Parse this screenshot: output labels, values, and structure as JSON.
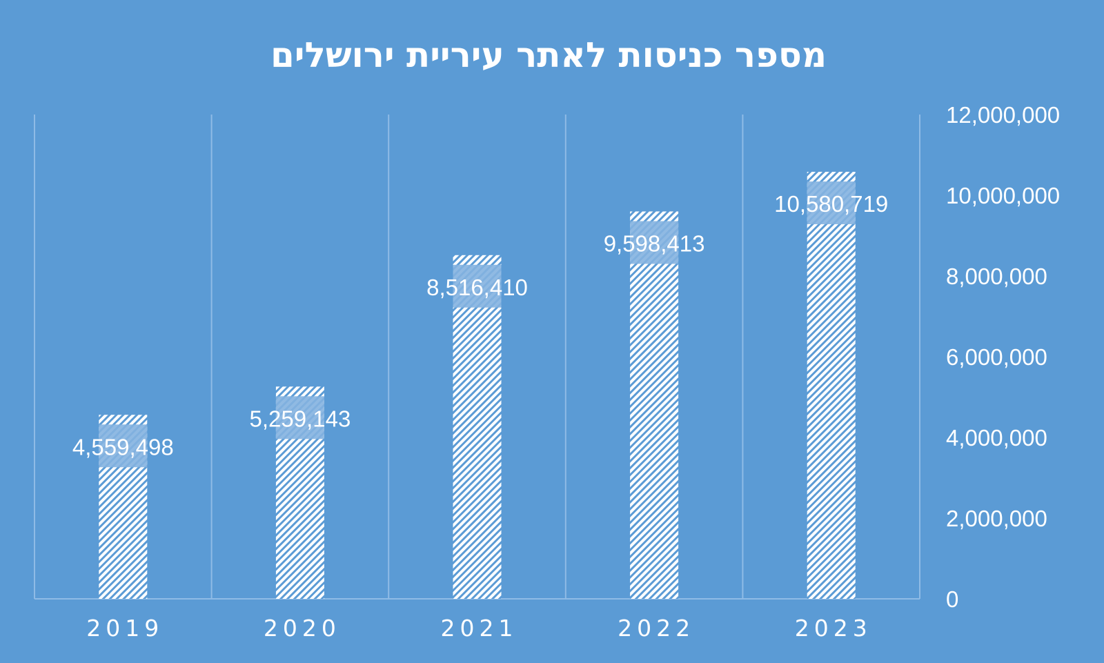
{
  "colors": {
    "background": "#5b9bd5",
    "bar_hatch": "#ffffff",
    "label_band": "#84b3e0",
    "grid": "#8fbbe6",
    "text": "#ffffff"
  },
  "chart_data": {
    "type": "bar",
    "title": "מספר כניסות לאתר עיריית ירושלים",
    "categories": [
      "2019",
      "2020",
      "2021",
      "2022",
      "2023"
    ],
    "values": [
      4559498,
      5259143,
      8516410,
      9598413,
      10580719
    ],
    "data_labels": [
      "4,559,498",
      "5,259,143",
      "8,516,410",
      "9,598,413",
      "10,580,719"
    ],
    "ylim": [
      0,
      12000000
    ],
    "yticks": [
      0,
      2000000,
      4000000,
      6000000,
      8000000,
      10000000,
      12000000
    ],
    "ytick_labels": [
      "0",
      "2,000,000",
      "4,000,000",
      "6,000,000",
      "8,000,000",
      "10,000,000",
      "12,000,000"
    ],
    "yaxis_position": "right",
    "grid": "vertical-category-separators",
    "legend": "none"
  }
}
